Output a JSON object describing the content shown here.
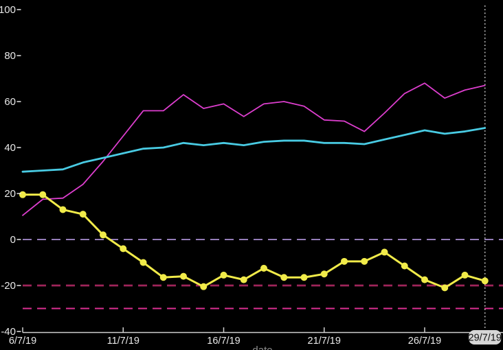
{
  "chart_data": {
    "type": "line",
    "title": "",
    "xlabel": "date",
    "ylabel": "",
    "x": [
      "6/7/19",
      "7/7/19",
      "8/7/19",
      "9/7/19",
      "10/7/19",
      "11/7/19",
      "12/7/19",
      "13/7/19",
      "14/7/19",
      "15/7/19",
      "16/7/19",
      "17/7/19",
      "18/7/19",
      "19/7/19",
      "20/7/19",
      "21/7/19",
      "22/7/19",
      "23/7/19",
      "24/7/19",
      "25/7/19",
      "26/7/19",
      "27/7/19",
      "28/7/19",
      "29/7/19"
    ],
    "x_tick_labels": [
      "6/7/19",
      "11/7/19",
      "16/7/19",
      "21/7/19",
      "26/7/19"
    ],
    "y_ticks": [
      100,
      80,
      60,
      40,
      20,
      0,
      -20,
      -40
    ],
    "ylim": [
      -40,
      100
    ],
    "grid": false,
    "legend": "none",
    "background": "#000000",
    "axis_text_color": "#e8e8e8",
    "axis_line_color": "#d0d0d0",
    "series": [
      {
        "name": "magenta",
        "color": "#dd3ece",
        "width": 1.8,
        "markers": false,
        "values": [
          10.5,
          17.5,
          18,
          24,
          34,
          45,
          56,
          56,
          63,
          57,
          59,
          53.5,
          59,
          60,
          58,
          52,
          51.5,
          47,
          55,
          63.5,
          68,
          61.5,
          65,
          67
        ]
      },
      {
        "name": "cyan",
        "color": "#49cbe3",
        "width": 2.8,
        "markers": false,
        "values": [
          29.5,
          30,
          30.5,
          33.5,
          35.5,
          37.5,
          39.5,
          40,
          42,
          41,
          42,
          41,
          42.5,
          43,
          43,
          42,
          42,
          41.5,
          43.5,
          45.5,
          47.5,
          46,
          47,
          48.5
        ]
      },
      {
        "name": "yellow",
        "color": "#f1eb49",
        "width": 3,
        "markers": true,
        "marker_radius": 5,
        "values": [
          19.5,
          19.5,
          13,
          11,
          2,
          -4,
          -10,
          -16.5,
          -16,
          -20.5,
          -15.5,
          -17.5,
          -12.5,
          -16.5,
          -16.5,
          -15,
          -9.5,
          -9.5,
          -5.5,
          -11.5,
          -17.5,
          -21,
          -15.5,
          -18
        ]
      }
    ],
    "reference_lines": [
      {
        "value": 0,
        "color": "#a98fd2",
        "width": 1.8,
        "dash": "13 8"
      },
      {
        "value": -20,
        "color": "#9f2459",
        "width": 2.8,
        "dash": "13 8"
      },
      {
        "value": -30,
        "color": "#dc2f92",
        "width": 2,
        "dash": "13 8"
      }
    ],
    "cursor": {
      "label": "29/7/19",
      "x": "29/7/19",
      "line_color": "#d4d4d4",
      "pill_bg": "#d6d6d6",
      "pill_text_color": "#111111"
    }
  }
}
